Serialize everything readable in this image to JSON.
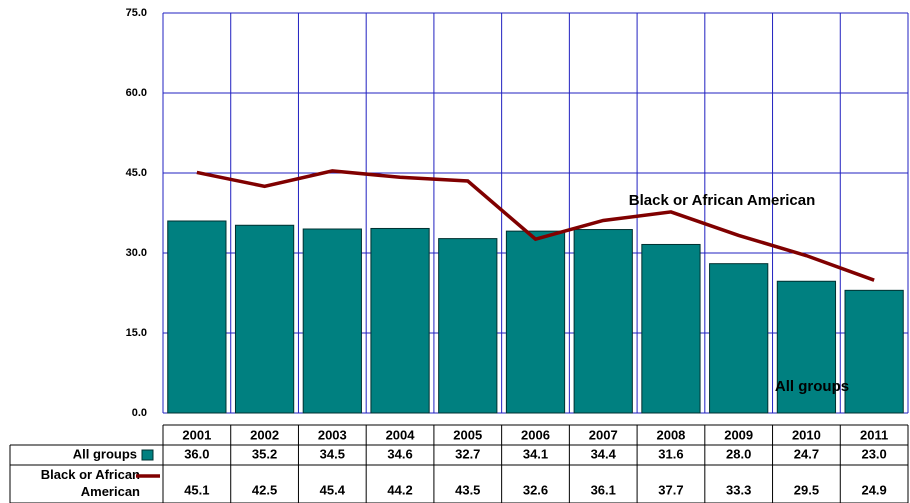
{
  "chart_data": {
    "type": "bar",
    "categories": [
      "2001",
      "2002",
      "2003",
      "2004",
      "2005",
      "2006",
      "2007",
      "2008",
      "2009",
      "2010",
      "2011"
    ],
    "series": [
      {
        "name": "All groups",
        "type": "bar",
        "color": "#008080",
        "values": [
          36.0,
          35.2,
          34.5,
          34.6,
          32.7,
          34.1,
          34.4,
          31.6,
          28.0,
          24.7,
          23.0
        ],
        "value_labels": [
          "36.0",
          "35.2",
          "34.5",
          "34.6",
          "32.7",
          "34.1",
          "34.4",
          "31.6",
          "28.0",
          "24.7",
          "23.0"
        ]
      },
      {
        "name": "Black or African American",
        "type": "line",
        "color": "#800000",
        "values": [
          45.1,
          42.5,
          45.4,
          44.2,
          43.5,
          32.6,
          36.1,
          37.7,
          33.3,
          29.5,
          24.9
        ]
      }
    ],
    "ylim": [
      0,
      75
    ],
    "yticks": [
      {
        "value": 0,
        "label": "0.0"
      },
      {
        "value": 15,
        "label": "15.0"
      },
      {
        "value": 30,
        "label": "30.0"
      },
      {
        "value": 45,
        "label": "45.0"
      },
      {
        "value": 60,
        "label": "60.0"
      },
      {
        "value": 75,
        "label": "75.0"
      }
    ],
    "grid": true,
    "annotations": [
      "Black or African American",
      "All groups"
    ]
  }
}
